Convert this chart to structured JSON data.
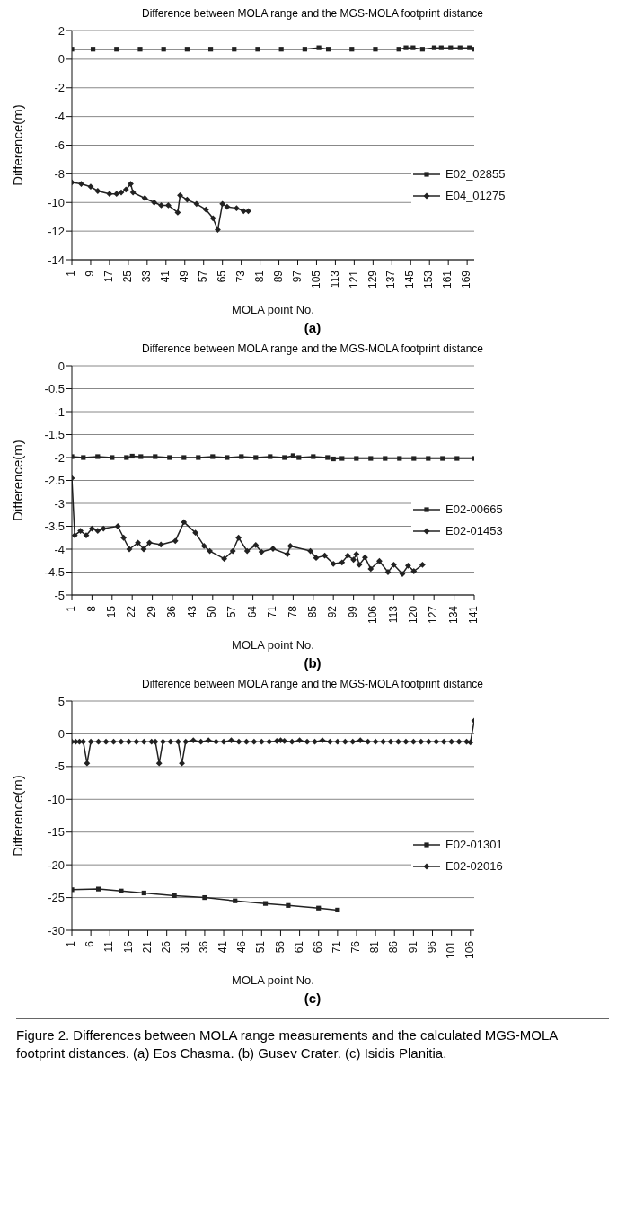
{
  "chart_data": [
    {
      "type": "line",
      "title": "Difference between MOLA range and the MGS-MOLA footprint distance",
      "xlabel": "MOLA point No.",
      "ylabel": "Difference(m)",
      "xlim": [
        1,
        172
      ],
      "xticks": [
        1,
        9,
        17,
        25,
        33,
        41,
        49,
        57,
        65,
        73,
        81,
        89,
        97,
        105,
        113,
        121,
        129,
        137,
        145,
        153,
        161,
        169
      ],
      "ylim": [
        -14,
        2
      ],
      "yticks": [
        -14,
        -12,
        -10,
        -8,
        -6,
        -4,
        -2,
        0,
        2
      ],
      "grid": "y",
      "legend": "right",
      "annotations": [
        "(a)"
      ],
      "series": [
        {
          "name": "E02_02855",
          "color": "#222222",
          "marker": "square",
          "x": [
            1,
            10,
            20,
            30,
            40,
            50,
            60,
            70,
            80,
            90,
            100,
            106,
            110,
            120,
            130,
            140,
            143,
            146,
            150,
            155,
            158,
            162,
            166,
            170,
            172
          ],
          "values": [
            0.7,
            0.7,
            0.7,
            0.7,
            0.7,
            0.7,
            0.7,
            0.7,
            0.7,
            0.7,
            0.7,
            0.8,
            0.7,
            0.7,
            0.7,
            0.7,
            0.8,
            0.8,
            0.7,
            0.8,
            0.8,
            0.8,
            0.8,
            0.8,
            0.7
          ]
        },
        {
          "name": "E04_01275",
          "color": "#222222",
          "marker": "diamond",
          "x": [
            1,
            5,
            9,
            12,
            17,
            20,
            22,
            24,
            26,
            27,
            32,
            36,
            39,
            42,
            46,
            47,
            50,
            54,
            58,
            61,
            63,
            65,
            67,
            71,
            74,
            76
          ],
          "values": [
            -8.6,
            -8.7,
            -8.9,
            -9.2,
            -9.4,
            -9.4,
            -9.3,
            -9.1,
            -8.7,
            -9.3,
            -9.7,
            -10.0,
            -10.2,
            -10.2,
            -10.7,
            -9.5,
            -9.8,
            -10.1,
            -10.5,
            -11.1,
            -11.9,
            -10.1,
            -10.3,
            -10.4,
            -10.6,
            -10.6
          ]
        }
      ]
    },
    {
      "type": "line",
      "title": "Difference between MOLA range and the MGS-MOLA footprint distance",
      "xlabel": "MOLA point No.",
      "ylabel": "Difference(m)",
      "xlim": [
        1,
        141
      ],
      "xticks": [
        1,
        8,
        15,
        22,
        29,
        36,
        43,
        50,
        57,
        64,
        71,
        78,
        85,
        92,
        99,
        106,
        113,
        120,
        127,
        134,
        141
      ],
      "ylim": [
        -5,
        0
      ],
      "yticks": [
        -5,
        -4.5,
        -4,
        -3.5,
        -3,
        -2.5,
        -2,
        -1.5,
        -1,
        -0.5,
        0
      ],
      "grid": "y",
      "legend": "right",
      "annotations": [
        "(b)"
      ],
      "series": [
        {
          "name": "E02-00665",
          "color": "#222222",
          "marker": "square",
          "x": [
            1,
            5,
            10,
            15,
            20,
            22,
            25,
            30,
            35,
            40,
            45,
            50,
            55,
            60,
            65,
            70,
            75,
            78,
            80,
            85,
            90,
            92,
            95,
            100,
            105,
            110,
            115,
            120,
            125,
            130,
            135,
            141
          ],
          "values": [
            -1.98,
            -2.0,
            -1.98,
            -2.0,
            -2.0,
            -1.97,
            -1.98,
            -1.98,
            -2.0,
            -2.0,
            -2.0,
            -1.98,
            -2.0,
            -1.98,
            -2.0,
            -1.98,
            -2.0,
            -1.96,
            -2.0,
            -1.98,
            -2.0,
            -2.03,
            -2.02,
            -2.02,
            -2.02,
            -2.02,
            -2.02,
            -2.02,
            -2.02,
            -2.02,
            -2.02,
            -2.02
          ]
        },
        {
          "name": "E02-01453",
          "color": "#222222",
          "marker": "diamond",
          "x": [
            1,
            2,
            4,
            6,
            8,
            10,
            12,
            17,
            19,
            21,
            24,
            26,
            28,
            32,
            37,
            40,
            44,
            47,
            49,
            54,
            57,
            59,
            62,
            65,
            67,
            71,
            76,
            77,
            84,
            86,
            89,
            92,
            95,
            97,
            99,
            100,
            101,
            103,
            105,
            108,
            111,
            113,
            116,
            118,
            120,
            123
          ],
          "values": [
            -2.45,
            -3.7,
            -3.6,
            -3.7,
            -3.55,
            -3.6,
            -3.55,
            -3.5,
            -3.75,
            -4.0,
            -3.86,
            -4.0,
            -3.86,
            -3.9,
            -3.82,
            -3.41,
            -3.64,
            -3.93,
            -4.04,
            -4.21,
            -4.04,
            -3.75,
            -4.04,
            -3.91,
            -4.06,
            -3.99,
            -4.11,
            -3.93,
            -4.04,
            -4.19,
            -4.14,
            -4.32,
            -4.29,
            -4.14,
            -4.23,
            -4.11,
            -4.34,
            -4.18,
            -4.43,
            -4.26,
            -4.5,
            -4.34,
            -4.54,
            -4.36,
            -4.48,
            -4.34
          ]
        }
      ]
    },
    {
      "type": "line",
      "title": "Difference between MOLA range and the MGS-MOLA footprint distance",
      "xlabel": "MOLA point No.",
      "ylabel": "Difference(m)",
      "xlim": [
        1,
        107
      ],
      "xticks": [
        1,
        6,
        11,
        16,
        21,
        26,
        31,
        36,
        41,
        46,
        51,
        56,
        61,
        66,
        71,
        76,
        81,
        86,
        91,
        96,
        101,
        106
      ],
      "ylim": [
        -30,
        5
      ],
      "yticks": [
        -30,
        -25,
        -20,
        -15,
        -10,
        -5,
        0,
        5
      ],
      "grid": "y",
      "legend": "right",
      "annotations": [
        "(c)",
        "Figure 2. Differences between MOLA range measurements and the calculated MGS-MOLA footprint distances. (a) Eos Chasma. (b) Gusev Crater. (c) Isidis Planitia."
      ],
      "series": [
        {
          "name": "E02-01301",
          "color": "#222222",
          "marker": "square",
          "x": [
            1,
            8,
            14,
            20,
            28,
            36,
            44,
            52,
            58,
            66,
            71
          ],
          "values": [
            -23.8,
            -23.7,
            -24.0,
            -24.3,
            -24.7,
            -25.0,
            -25.5,
            -25.9,
            -26.2,
            -26.6,
            -26.9
          ]
        },
        {
          "name": "E02-02016",
          "color": "#222222",
          "marker": "diamond",
          "x": [
            1,
            2,
            3,
            4,
            5,
            6,
            8,
            10,
            12,
            14,
            16,
            18,
            20,
            22,
            23,
            24,
            25,
            27,
            29,
            30,
            31,
            33,
            35,
            37,
            39,
            41,
            43,
            45,
            47,
            49,
            51,
            53,
            55,
            56,
            57,
            59,
            61,
            63,
            65,
            67,
            69,
            71,
            73,
            75,
            77,
            79,
            81,
            83,
            85,
            87,
            89,
            91,
            93,
            95,
            97,
            99,
            101,
            103,
            105,
            106,
            107
          ],
          "values": [
            -1.2,
            -1.2,
            -1.2,
            -1.2,
            -4.5,
            -1.2,
            -1.2,
            -1.2,
            -1.2,
            -1.2,
            -1.2,
            -1.2,
            -1.2,
            -1.2,
            -1.2,
            -4.5,
            -1.2,
            -1.2,
            -1.2,
            -4.5,
            -1.2,
            -1.0,
            -1.2,
            -1.0,
            -1.2,
            -1.2,
            -1.0,
            -1.2,
            -1.2,
            -1.2,
            -1.2,
            -1.2,
            -1.1,
            -1.0,
            -1.1,
            -1.2,
            -1.0,
            -1.2,
            -1.2,
            -1.0,
            -1.2,
            -1.2,
            -1.2,
            -1.2,
            -1.0,
            -1.2,
            -1.2,
            -1.2,
            -1.2,
            -1.2,
            -1.2,
            -1.2,
            -1.2,
            -1.2,
            -1.2,
            -1.2,
            -1.2,
            -1.2,
            -1.2,
            -1.3,
            2.0
          ]
        }
      ]
    }
  ]
}
